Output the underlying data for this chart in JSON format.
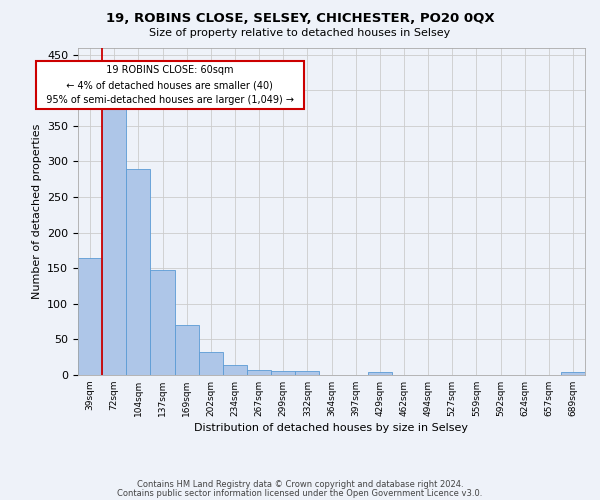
{
  "title_line1": "19, ROBINS CLOSE, SELSEY, CHICHESTER, PO20 0QX",
  "title_line2": "Size of property relative to detached houses in Selsey",
  "xlabel": "Distribution of detached houses by size in Selsey",
  "ylabel": "Number of detached properties",
  "footer_line1": "Contains HM Land Registry data © Crown copyright and database right 2024.",
  "footer_line2": "Contains public sector information licensed under the Open Government Licence v3.0.",
  "annotation_title": "19 ROBINS CLOSE: 60sqm",
  "annotation_line1": "← 4% of detached houses are smaller (40)",
  "annotation_line2": "95% of semi-detached houses are larger (1,049) →",
  "bar_labels": [
    "39sqm",
    "72sqm",
    "104sqm",
    "137sqm",
    "169sqm",
    "202sqm",
    "234sqm",
    "267sqm",
    "299sqm",
    "332sqm",
    "364sqm",
    "397sqm",
    "429sqm",
    "462sqm",
    "494sqm",
    "527sqm",
    "559sqm",
    "592sqm",
    "624sqm",
    "657sqm",
    "689sqm"
  ],
  "bar_values": [
    165,
    375,
    290,
    147,
    70,
    33,
    14,
    7,
    6,
    5,
    0,
    0,
    4,
    0,
    0,
    0,
    0,
    0,
    0,
    0,
    4
  ],
  "bar_color": "#aec6e8",
  "bar_edge_color": "#5b9bd5",
  "bar_width": 1.0,
  "ylim": [
    0,
    460
  ],
  "yticks": [
    0,
    50,
    100,
    150,
    200,
    250,
    300,
    350,
    400,
    450
  ],
  "vline_color": "#cc0000",
  "annotation_box_color": "#cc0000",
  "annotation_box_fill": "#ffffff",
  "grid_color": "#cccccc",
  "background_color": "#eef2f9"
}
